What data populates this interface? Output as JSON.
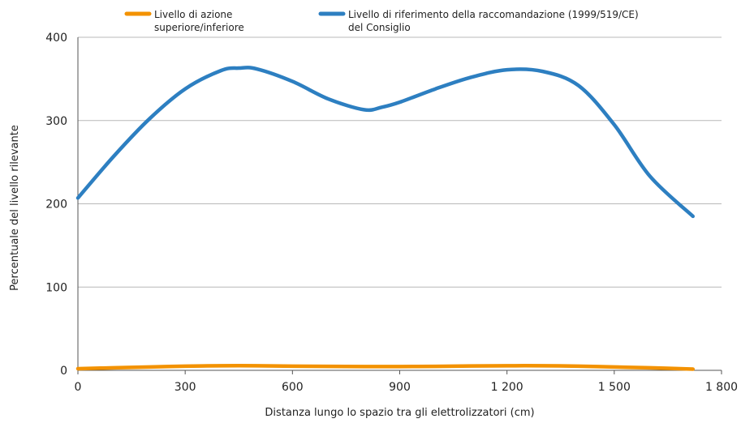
{
  "chart_data": {
    "type": "line",
    "title": "",
    "xlabel": "Distanza lungo lo spazio tra gli elettrolizzatori (cm)",
    "ylabel": "Percentuale del livello rilevante",
    "xlim": [
      0,
      1800
    ],
    "ylim": [
      0,
      400
    ],
    "x_ticks": [
      0,
      300,
      600,
      900,
      1200,
      1500,
      1800
    ],
    "x_tick_labels": [
      "0",
      "300",
      "600",
      "900",
      "1 200",
      "1 500",
      "1 800"
    ],
    "y_ticks": [
      0,
      100,
      200,
      300,
      400
    ],
    "y_tick_labels": [
      "0",
      "100",
      "200",
      "300",
      "400"
    ],
    "grid": "horizontal",
    "legend_position": "top",
    "series": [
      {
        "name_lines": [
          "Livello di azione",
          "superiore/inferiore"
        ],
        "color": "#f39200",
        "x": [
          0,
          100,
          200,
          300,
          400,
          500,
          600,
          700,
          800,
          900,
          1000,
          1100,
          1200,
          1300,
          1400,
          1500,
          1600,
          1720
        ],
        "values": [
          2,
          3,
          4,
          5,
          5.5,
          5.5,
          5,
          4.8,
          4.5,
          4.5,
          4.8,
          5.2,
          5.5,
          5.5,
          5,
          4,
          3,
          1.5
        ]
      },
      {
        "name_lines": [
          "Livello di riferimento della raccomandazione (1999/519/CE)",
          "del Consiglio"
        ],
        "color": "#2d7fc1",
        "x": [
          0,
          100,
          200,
          300,
          400,
          450,
          500,
          600,
          700,
          800,
          850,
          900,
          1000,
          1100,
          1200,
          1300,
          1400,
          1500,
          1600,
          1720
        ],
        "values": [
          207,
          257,
          302,
          338,
          360,
          363,
          362,
          347,
          326,
          313,
          316,
          322,
          338,
          352,
          361,
          359,
          342,
          295,
          233,
          185
        ]
      }
    ]
  }
}
